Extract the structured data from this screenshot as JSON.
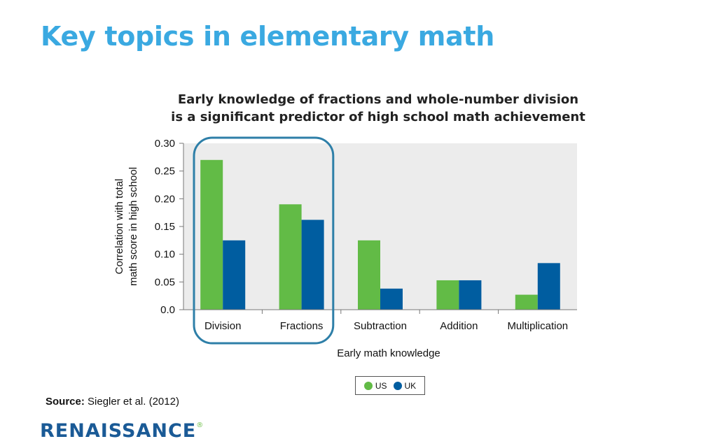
{
  "slide": {
    "title": "Key topics in elementary math",
    "source_label": "Source:",
    "source_text": "Siegler et al. (2012)",
    "logo_text": "RENAISSANCE",
    "logo_mark": "®"
  },
  "chart_data": {
    "type": "bar",
    "title_lines": [
      "Early knowledge of fractions and whole-number division",
      "is a significant predictor of high school math achievement"
    ],
    "xlabel": "Early math knowledge",
    "ylabel_lines": [
      "Correlation with total",
      "math score in high school"
    ],
    "categories": [
      "Division",
      "Fractions",
      "Subtraction",
      "Addition",
      "Multiplication"
    ],
    "series": [
      {
        "name": "US",
        "color": "#62BB46",
        "values": [
          0.27,
          0.19,
          0.125,
          0.053,
          0.027
        ]
      },
      {
        "name": "UK",
        "color": "#005DA0",
        "values": [
          0.125,
          0.162,
          0.038,
          0.053,
          0.084
        ]
      }
    ],
    "ylim": [
      0,
      0.3
    ],
    "yticks": [
      {
        "value": 0.0,
        "label": "0.0"
      },
      {
        "value": 0.05,
        "label": "0.05"
      },
      {
        "value": 0.1,
        "label": "0.10"
      },
      {
        "value": 0.15,
        "label": "0.15"
      },
      {
        "value": 0.2,
        "label": "0.20"
      },
      {
        "value": 0.25,
        "label": "0.25"
      },
      {
        "value": 0.3,
        "label": "0.30"
      }
    ],
    "highlighted_categories": [
      "Division",
      "Fractions"
    ],
    "highlight_color": "#2E7FA8",
    "plot_background": "#ECECEC",
    "legend_position": "bottom"
  }
}
